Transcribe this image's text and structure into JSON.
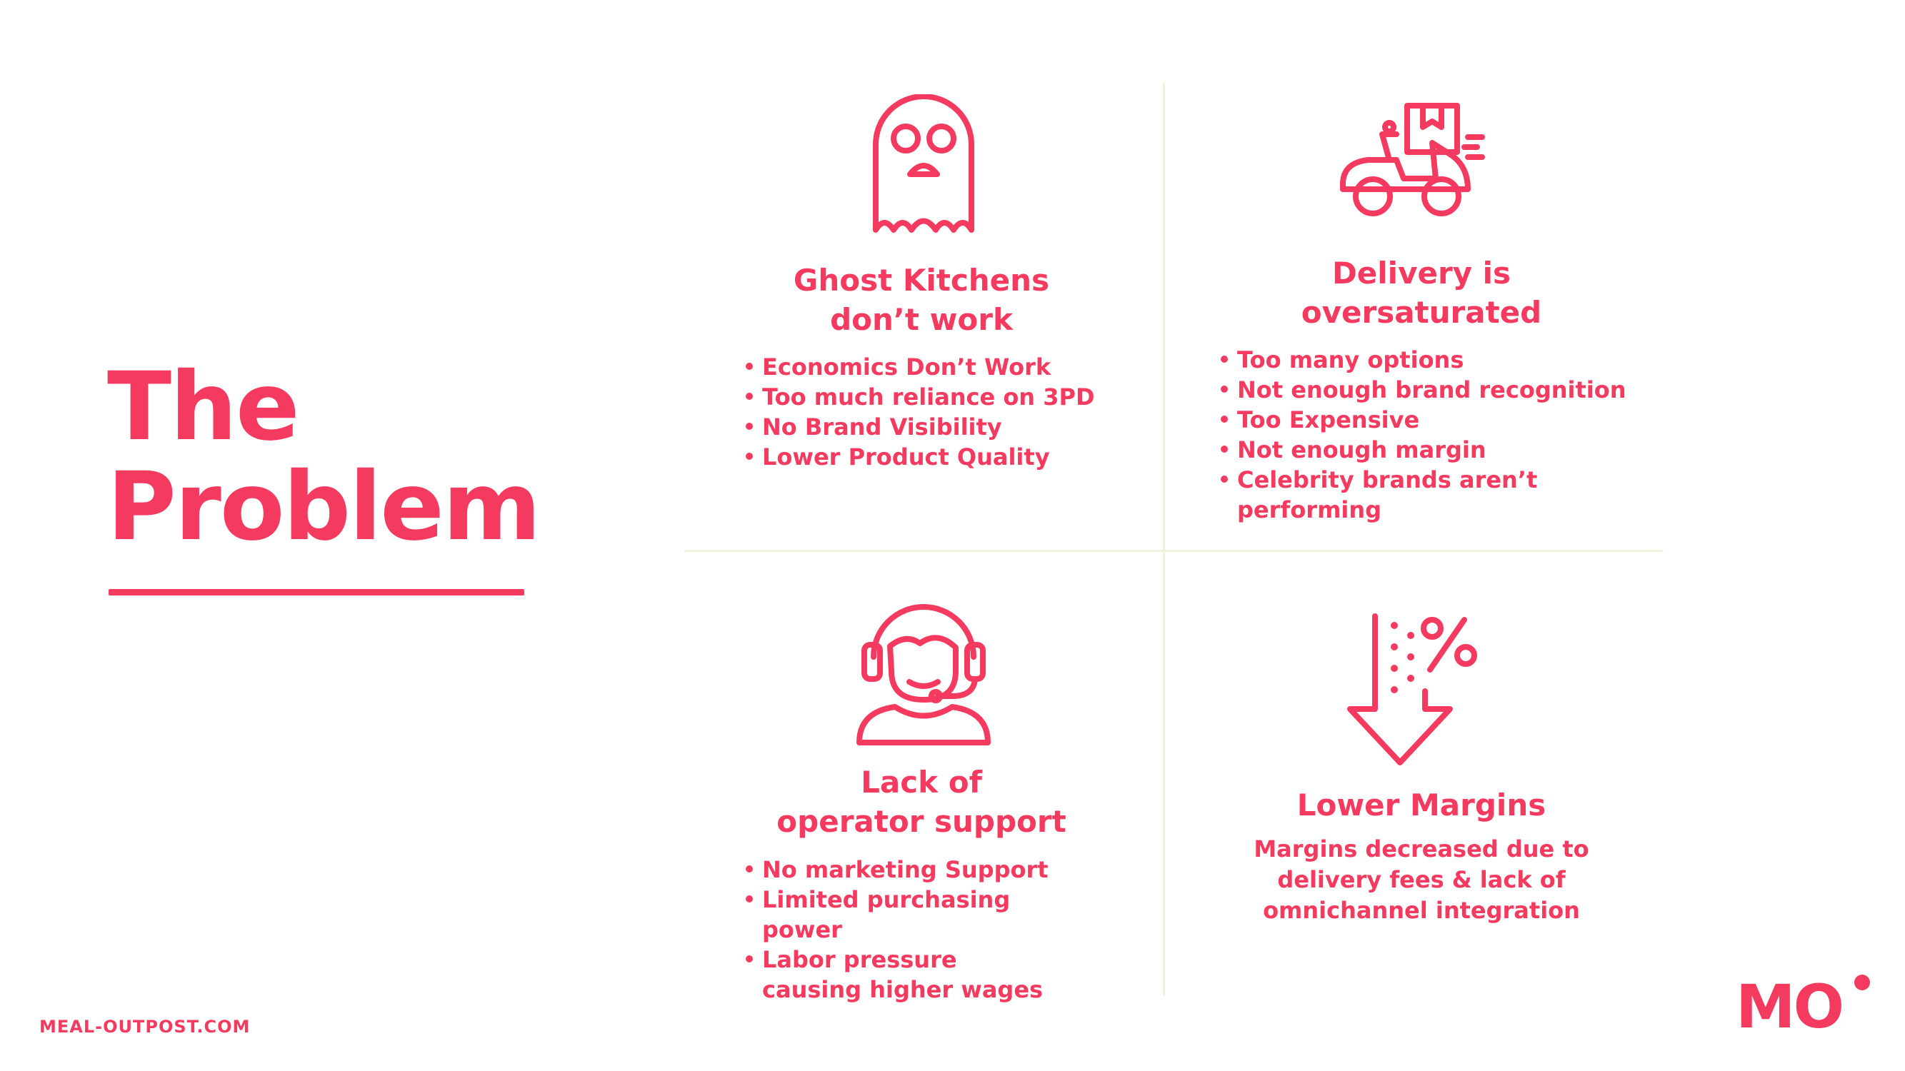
{
  "slide": {
    "title_line1": "The",
    "title_line2": "Problem",
    "footer_url": "MEAL-OUTPOST.COM",
    "logo_text": "MO",
    "accent_color": "#f43a5f",
    "divider_color": "#ecf4df"
  },
  "quadrants": {
    "ghost": {
      "icon": "ghost-icon",
      "heading_line1": "Ghost Kitchens",
      "heading_line2": "don’t work",
      "bullets": [
        "Economics Don’t Work",
        "Too much reliance on 3PD",
        "No Brand Visibility",
        "Lower Product Quality"
      ]
    },
    "delivery": {
      "icon": "delivery-scooter-icon",
      "heading_line1": "Delivery is",
      "heading_line2": "oversaturated",
      "bullets": [
        "Too many options",
        " Not enough brand recognition",
        "Too Expensive",
        "Not enough margin",
        "Celebrity brands aren’t performing"
      ]
    },
    "support": {
      "icon": "headset-operator-icon",
      "heading_line1": "Lack of",
      "heading_line2": "operator support",
      "bullets": [
        " No marketing Support",
        "Limited purchasing power",
        "Labor pressure causing higher wages"
      ]
    },
    "margins": {
      "icon": "percent-down-arrow-icon",
      "heading": "Lower Margins",
      "text_line1": "Margins decreased due to",
      "text_line2": "delivery fees &  lack of",
      "text_line3": "omnichannel integration"
    }
  }
}
